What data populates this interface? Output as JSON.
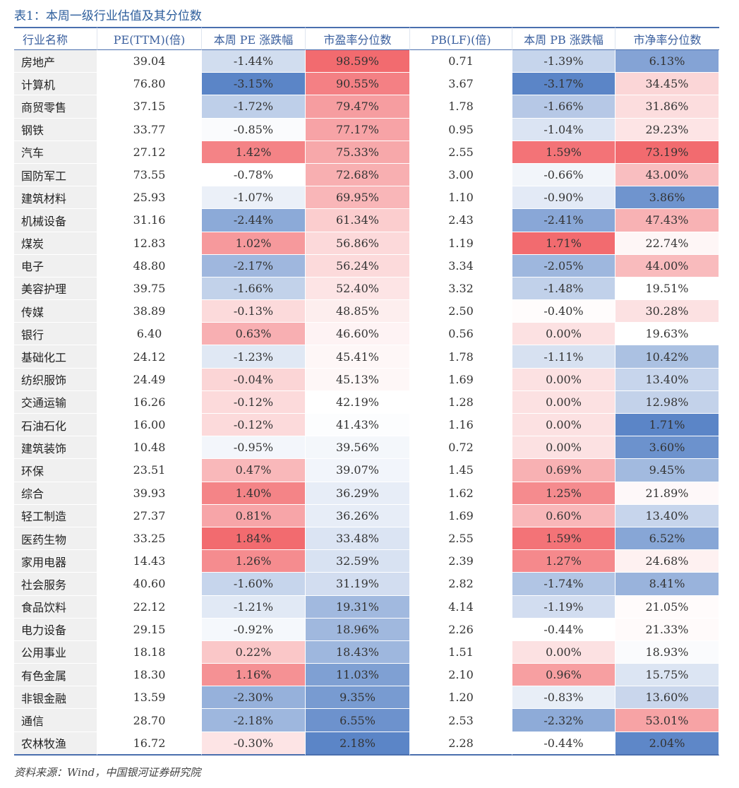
{
  "caption": "表1：本周一级行业估值及其分位数",
  "headers": [
    "行业名称",
    "PE(TTM)(倍)",
    "本周 PE 涨跌幅",
    "市盈率分位数",
    "PB(LF)(倍)",
    "本周 PB 涨跌幅",
    "市净率分位数"
  ],
  "rows": [
    [
      "房地产",
      "39.04",
      "-1.44%",
      "98.59%",
      "0.71",
      "-1.39%",
      "6.13%"
    ],
    [
      "计算机",
      "76.80",
      "-3.15%",
      "90.55%",
      "3.67",
      "-3.17%",
      "34.45%"
    ],
    [
      "商贸零售",
      "37.15",
      "-1.72%",
      "79.47%",
      "1.78",
      "-1.66%",
      "31.86%"
    ],
    [
      "钢铁",
      "33.77",
      "-0.85%",
      "77.17%",
      "0.95",
      "-1.04%",
      "29.23%"
    ],
    [
      "汽车",
      "27.12",
      "1.42%",
      "75.33%",
      "2.55",
      "1.59%",
      "73.19%"
    ],
    [
      "国防军工",
      "73.55",
      "-0.78%",
      "72.68%",
      "3.00",
      "-0.66%",
      "43.00%"
    ],
    [
      "建筑材料",
      "25.93",
      "-1.07%",
      "69.95%",
      "1.10",
      "-0.90%",
      "3.86%"
    ],
    [
      "机械设备",
      "31.16",
      "-2.44%",
      "61.34%",
      "2.43",
      "-2.41%",
      "47.43%"
    ],
    [
      "煤炭",
      "12.83",
      "1.02%",
      "56.86%",
      "1.19",
      "1.71%",
      "22.74%"
    ],
    [
      "电子",
      "48.80",
      "-2.17%",
      "56.24%",
      "3.34",
      "-2.05%",
      "44.00%"
    ],
    [
      "美容护理",
      "39.75",
      "-1.66%",
      "52.40%",
      "3.32",
      "-1.48%",
      "19.51%"
    ],
    [
      "传媒",
      "38.89",
      "-0.13%",
      "48.85%",
      "2.50",
      "-0.40%",
      "30.28%"
    ],
    [
      "银行",
      "6.40",
      "0.63%",
      "46.60%",
      "0.56",
      "0.00%",
      "19.63%"
    ],
    [
      "基础化工",
      "24.12",
      "-1.23%",
      "45.41%",
      "1.78",
      "-1.11%",
      "10.42%"
    ],
    [
      "纺织服饰",
      "24.49",
      "-0.04%",
      "45.13%",
      "1.69",
      "0.00%",
      "13.40%"
    ],
    [
      "交通运输",
      "16.26",
      "-0.12%",
      "42.19%",
      "1.28",
      "0.00%",
      "12.98%"
    ],
    [
      "石油石化",
      "16.00",
      "-0.12%",
      "41.43%",
      "1.16",
      "0.00%",
      "1.71%"
    ],
    [
      "建筑装饰",
      "10.48",
      "-0.95%",
      "39.56%",
      "0.72",
      "0.00%",
      "3.60%"
    ],
    [
      "环保",
      "23.51",
      "0.47%",
      "39.07%",
      "1.45",
      "0.69%",
      "9.45%"
    ],
    [
      "综合",
      "39.93",
      "1.40%",
      "36.29%",
      "1.62",
      "1.25%",
      "21.89%"
    ],
    [
      "轻工制造",
      "27.37",
      "0.81%",
      "36.26%",
      "1.69",
      "0.60%",
      "13.40%"
    ],
    [
      "医药生物",
      "33.25",
      "1.84%",
      "33.48%",
      "2.55",
      "1.59%",
      "6.52%"
    ],
    [
      "家用电器",
      "14.43",
      "1.26%",
      "32.59%",
      "2.39",
      "1.27%",
      "24.68%"
    ],
    [
      "社会服务",
      "40.60",
      "-1.60%",
      "31.19%",
      "2.82",
      "-1.74%",
      "8.41%"
    ],
    [
      "食品饮料",
      "22.12",
      "-1.21%",
      "19.31%",
      "4.14",
      "-1.19%",
      "21.05%"
    ],
    [
      "电力设备",
      "29.15",
      "-0.92%",
      "18.96%",
      "2.26",
      "-0.44%",
      "21.33%"
    ],
    [
      "公用事业",
      "18.18",
      "0.22%",
      "18.43%",
      "1.51",
      "0.00%",
      "18.93%"
    ],
    [
      "有色金属",
      "18.30",
      "1.16%",
      "11.03%",
      "2.10",
      "0.96%",
      "15.75%"
    ],
    [
      "非银金融",
      "13.59",
      "-2.30%",
      "9.35%",
      "1.20",
      "-0.83%",
      "13.60%"
    ],
    [
      "通信",
      "28.70",
      "-2.18%",
      "6.55%",
      "2.53",
      "-2.32%",
      "53.01%"
    ],
    [
      "农林牧渔",
      "16.72",
      "-0.30%",
      "2.18%",
      "2.28",
      "-0.44%",
      "2.04%"
    ]
  ],
  "heat_colors": {
    "high": "#f26b6f",
    "mid": "#ffffff",
    "low": "#5b85c7"
  },
  "source": "资料来源：Wind，中国银河证券研究院"
}
